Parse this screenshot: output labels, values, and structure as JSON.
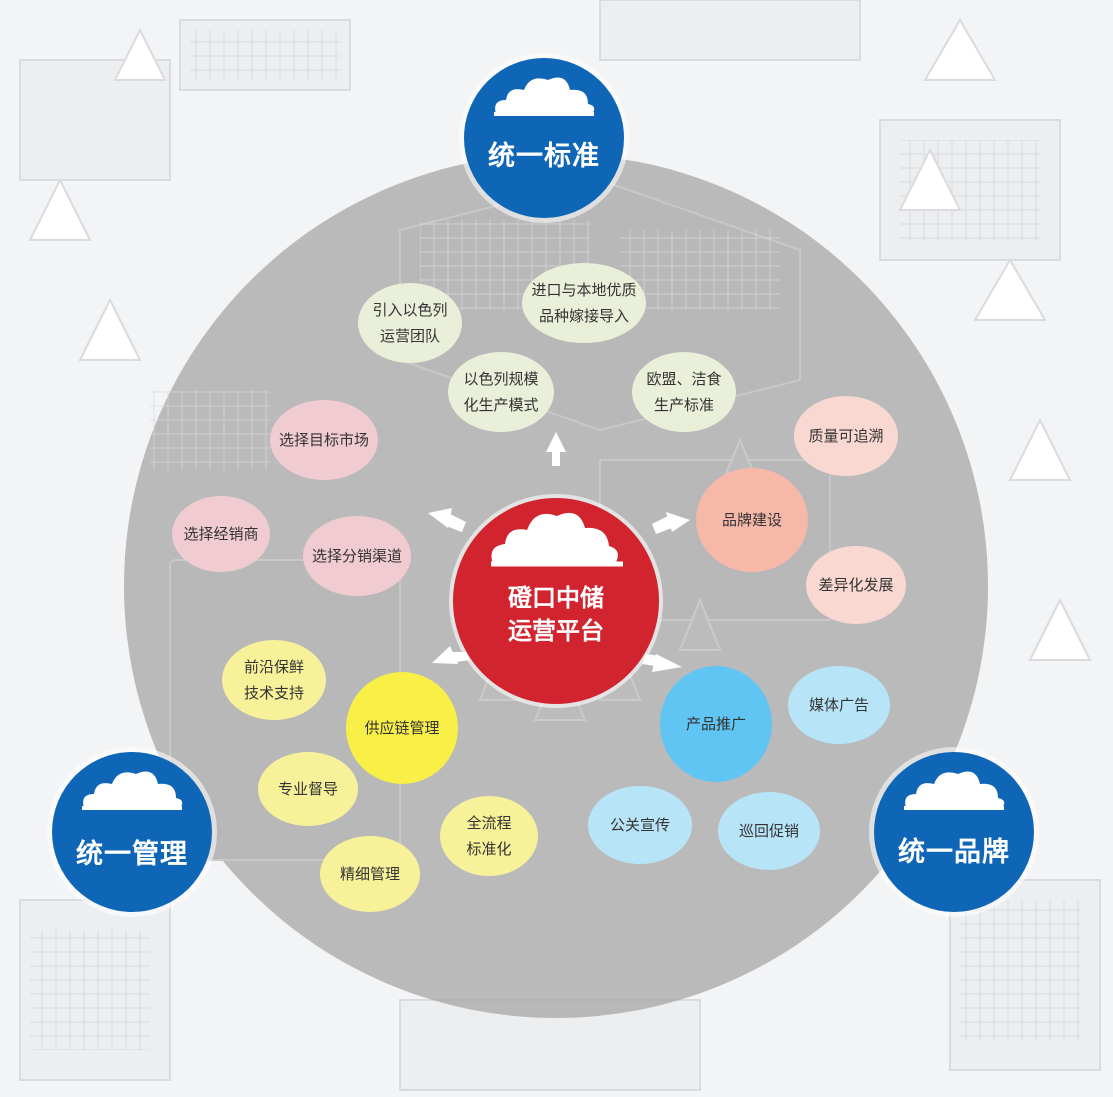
{
  "colors": {
    "corner_blue": "#0f66b7",
    "center_red": "#d2242e",
    "big_circle_gray": "#a9a9a9",
    "bubble_pink": "#f0cbd1",
    "bubble_green": "#e9efd9",
    "bubble_salmon": "#f6b8a8",
    "bubble_rose": "#f9d8d2",
    "bubble_yellow": "#f7f29a",
    "bubble_yellow_strong": "#f8ef47",
    "bubble_blue": "#60c5f2",
    "bubble_lightblue": "#b8e4f8"
  },
  "icons": [
    "cloud-icon",
    "arrow-icon"
  ],
  "center": {
    "label": "磴口中储\n运营平台"
  },
  "corners": {
    "top": "统一标准",
    "left": "统一管理",
    "right": "统一品牌"
  },
  "bubbles": {
    "intro_team": "引入以色列\n运营团队",
    "import_varieties": "进口与本地优质\n品种嫁接导入",
    "israel_model": "以色列规模\n化生产模式",
    "eu_standard": "欧盟、洁食\n生产标准",
    "target_market": "选择目标市场",
    "distributor": "选择经销商",
    "channels": "选择分销渠道",
    "quality_trace": "质量可追溯",
    "brand_building": "品牌建设",
    "differentiation": "差异化发展",
    "fresh_tech": "前沿保鲜\n技术支持",
    "supply_chain": "供应链管理",
    "supervision": "专业督导",
    "standardization": "全流程\n标准化",
    "fine_management": "精细管理",
    "promotion": "产品推广",
    "media_ads": "媒体广告",
    "pr": "公关宣传",
    "roadshow": "巡回促销"
  }
}
